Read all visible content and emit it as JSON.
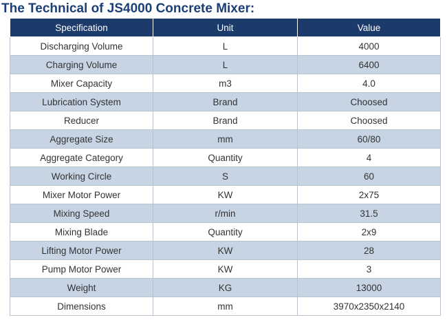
{
  "header": {
    "title": "The Technical of JS4000 Concrete Mixer:"
  },
  "table": {
    "columns": [
      "Specification",
      "Unit",
      "Value"
    ],
    "rows": [
      [
        "Discharging Volume",
        "L",
        "4000"
      ],
      [
        "Charging Volume",
        "L",
        "6400"
      ],
      [
        "Mixer Capacity",
        "m3",
        "4.0"
      ],
      [
        "Lubrication System",
        "Brand",
        "Choosed"
      ],
      [
        "Reducer",
        "Brand",
        "Choosed"
      ],
      [
        "Aggregate Size",
        "mm",
        "60/80"
      ],
      [
        "Aggregate Category",
        "Quantity",
        "4"
      ],
      [
        "Working Circle",
        "S",
        "60"
      ],
      [
        "Mixer Motor Power",
        "KW",
        "2x75"
      ],
      [
        "Mixing Speed",
        "r/min",
        "31.5"
      ],
      [
        "Mixing Blade",
        "Quantity",
        "2x9"
      ],
      [
        "Lifting Motor Power",
        "KW",
        "28"
      ],
      [
        "Pump Motor Power",
        "KW",
        "3"
      ],
      [
        "Weight",
        "KG",
        "13000"
      ],
      [
        "Dimensions",
        "mm",
        "3970x2350x2140"
      ]
    ]
  }
}
